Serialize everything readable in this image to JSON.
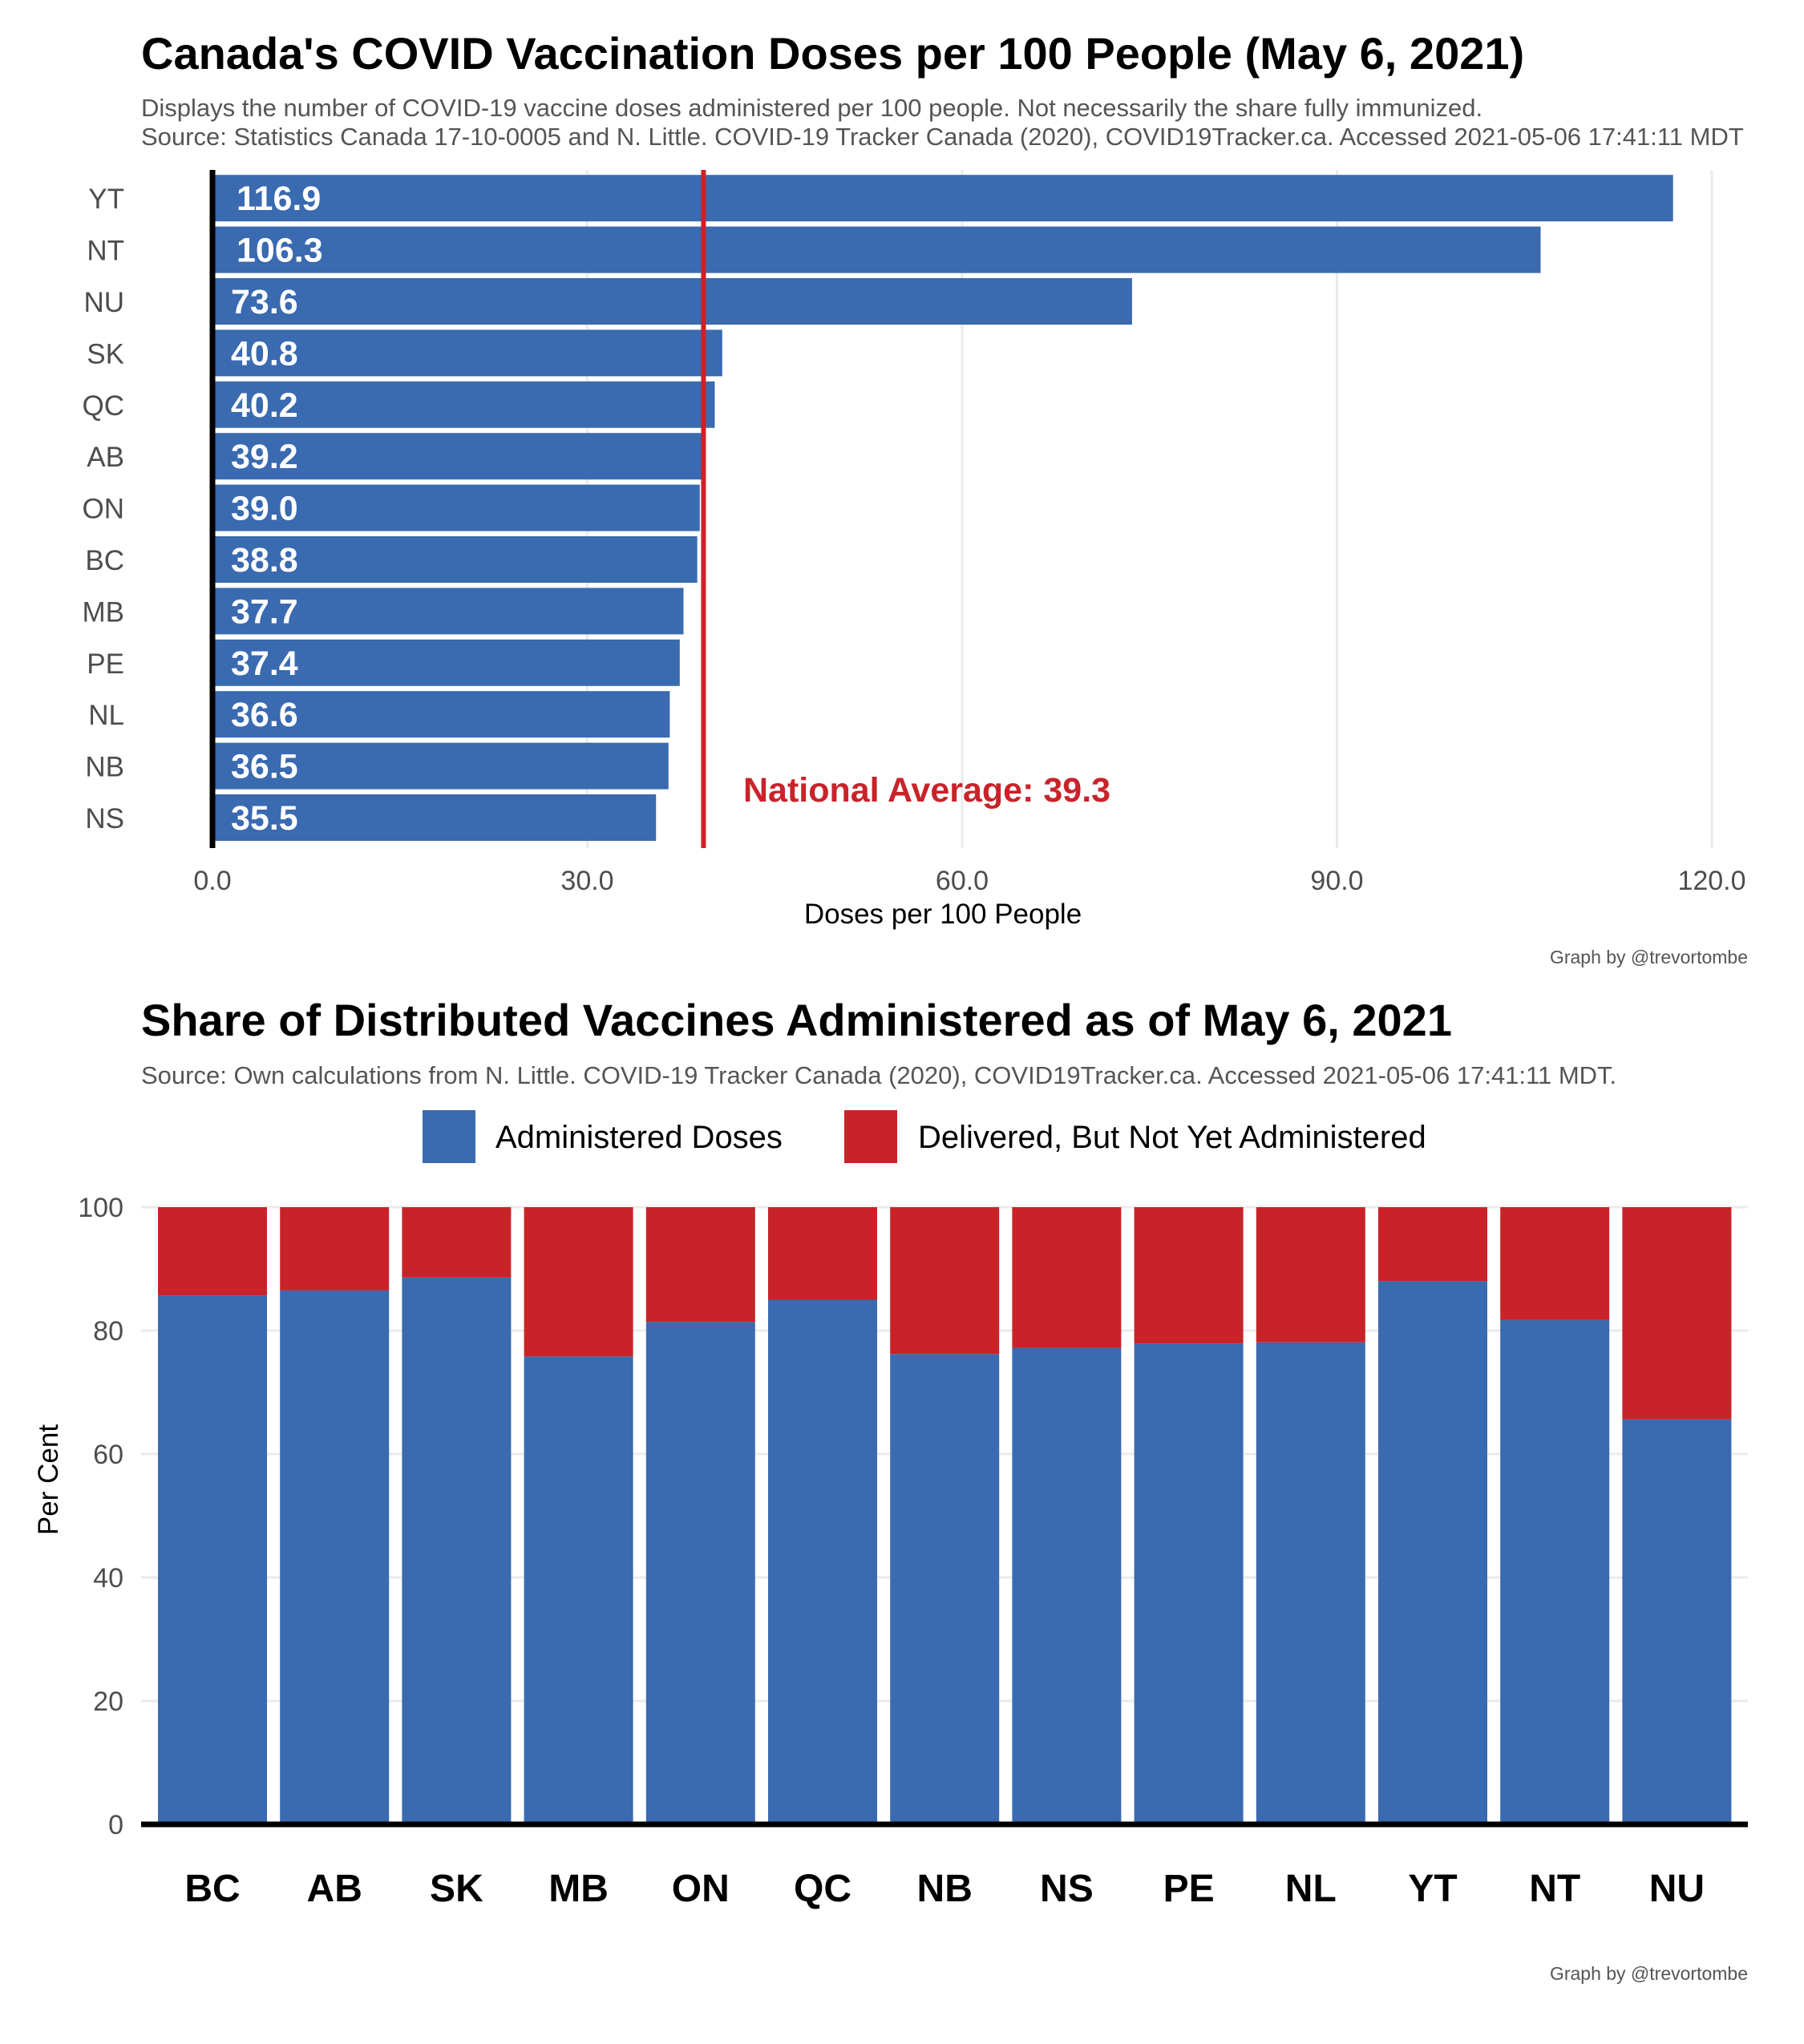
{
  "colors": {
    "administered": "#3a6ab0",
    "pending": "#c9232a",
    "grid": "#ebebeb",
    "axis": "#000000"
  },
  "chart_data": [
    {
      "type": "bar",
      "orientation": "horizontal",
      "title": "Canada's COVID Vaccination Doses per 100 People (May 6, 2021)",
      "subtitle_lines": [
        "Displays the number of COVID-19 vaccine doses administered per 100 people. Not necessarily the share fully immunized.",
        "Source: Statistics Canada 17-10-0005 and N. Little. COVID-19 Tracker Canada (2020), COVID19Tracker.ca. Accessed 2021-05-06 17:41:11 MDT"
      ],
      "categories": [
        "YT",
        "NT",
        "NU",
        "SK",
        "QC",
        "AB",
        "ON",
        "BC",
        "MB",
        "PE",
        "NL",
        "NB",
        "NS"
      ],
      "values": [
        116.9,
        106.3,
        73.6,
        40.8,
        40.2,
        39.2,
        39.0,
        38.8,
        37.7,
        37.4,
        36.6,
        36.5,
        35.5
      ],
      "value_labels": [
        "116.9",
        "106.3",
        "73.6",
        "40.8",
        "40.2",
        "39.2",
        "39.0",
        "38.8",
        "37.7",
        "37.4",
        "36.6",
        "36.5",
        "35.5"
      ],
      "xlabel": "Doses per 100 People",
      "ylabel": "",
      "xlim": [
        0,
        122
      ],
      "xticks": [
        0,
        30,
        60,
        90,
        120
      ],
      "xtick_labels": [
        "0.0",
        "30.0",
        "60.0",
        "90.0",
        "120.0"
      ],
      "reference_line": {
        "value": 39.3,
        "label": "National Average: 39.3"
      },
      "grid": true,
      "credit": "Graph by @trevortombe"
    },
    {
      "type": "bar",
      "stacked": true,
      "title": "Share of Distributed Vaccines Administered as of May 6, 2021",
      "subtitle": "Source: Own calculations from N. Little. COVID-19 Tracker Canada (2020), COVID19Tracker.ca. Accessed 2021-05-06 17:41:11 MDT.",
      "categories": [
        "BC",
        "AB",
        "SK",
        "MB",
        "ON",
        "QC",
        "NB",
        "NS",
        "PE",
        "NL",
        "YT",
        "NT",
        "NU"
      ],
      "series": [
        {
          "name": "Administered Doses",
          "values": [
            85.7,
            86.5,
            88.6,
            75.8,
            81.4,
            85.0,
            76.2,
            77.2,
            77.9,
            78.1,
            88.0,
            81.7,
            65.6
          ]
        },
        {
          "name": "Delivered, But Not Yet Administered",
          "values": [
            14.3,
            13.5,
            11.4,
            24.2,
            18.6,
            15.0,
            23.8,
            22.8,
            22.1,
            21.9,
            12.0,
            18.3,
            34.4
          ]
        }
      ],
      "xlabel": "",
      "ylabel": "Per Cent",
      "ylim": [
        0,
        100
      ],
      "yticks": [
        0,
        20,
        40,
        60,
        80,
        100
      ],
      "ytick_labels": [
        "0",
        "20",
        "40",
        "60",
        "80",
        "100"
      ],
      "legend_position": "top",
      "grid": true,
      "credit": "Graph by @trevortombe"
    }
  ]
}
